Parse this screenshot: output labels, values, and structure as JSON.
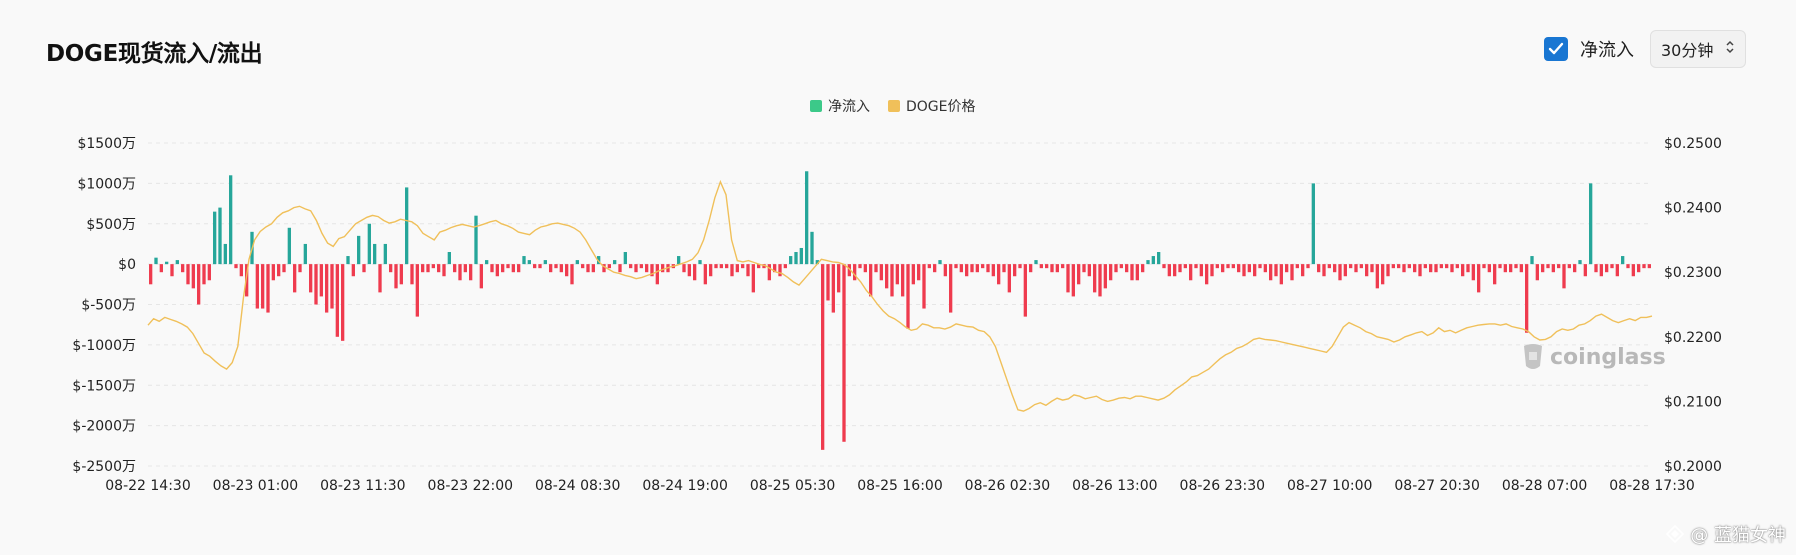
{
  "header": {
    "title": "DOGE现货流入/流出",
    "checkbox_label": "净流入",
    "interval": "30分钟"
  },
  "legend": [
    {
      "label": "净流入",
      "color": "#3cc989"
    },
    {
      "label": "DOGE价格",
      "color": "#f0c05a"
    }
  ],
  "watermark": "coinglass",
  "credit": "@ 蓝猫女神",
  "chart_data": {
    "type": "bar+line",
    "x_tick_labels": [
      "08-22 14:30",
      "08-23 01:00",
      "08-23 11:30",
      "08-23 22:00",
      "08-24 08:30",
      "08-24 19:00",
      "08-25 05:30",
      "08-25 16:00",
      "08-26 02:30",
      "08-26 13:00",
      "08-26 23:30",
      "08-27 10:00",
      "08-27 20:30",
      "08-28 07:00",
      "08-28 17:30"
    ],
    "y_left": {
      "ticks": [
        1500,
        1000,
        500,
        0,
        -500,
        -1000,
        -1500,
        -2000,
        -2500
      ],
      "labels": [
        "$1500万",
        "$1000万",
        "$500万",
        "$0",
        "$-500万",
        "$-1000万",
        "$-1500万",
        "$-2000万",
        "$-2500万"
      ],
      "range": [
        -2500,
        1500
      ],
      "unit": "万"
    },
    "y_right": {
      "ticks": [
        0.25,
        0.24,
        0.23,
        0.22,
        0.21,
        0.2
      ],
      "labels": [
        "$0.2500",
        "$0.2400",
        "$0.2300",
        "$0.2200",
        "$0.2100",
        "$0.2000"
      ],
      "range": [
        0.2,
        0.25
      ]
    },
    "colors": {
      "positive": "#26a69a",
      "negative": "#ef3b4e",
      "price": "#f0c05a"
    },
    "series": [
      {
        "name": "净流入",
        "values": [
          -250,
          80,
          -100,
          30,
          -150,
          50,
          -100,
          -250,
          -300,
          -500,
          -250,
          -200,
          650,
          700,
          250,
          1100,
          -50,
          -150,
          -400,
          400,
          -550,
          -550,
          -600,
          -200,
          -150,
          -100,
          450,
          -350,
          -100,
          250,
          -350,
          -500,
          -400,
          -600,
          -550,
          -900,
          -950,
          100,
          -150,
          350,
          -100,
          500,
          250,
          -350,
          250,
          -100,
          -300,
          -250,
          950,
          -250,
          -650,
          -100,
          -100,
          -50,
          -100,
          -150,
          150,
          -100,
          -200,
          -100,
          -200,
          600,
          -300,
          50,
          -100,
          -150,
          -100,
          -50,
          -100,
          -100,
          100,
          50,
          -50,
          -50,
          50,
          -100,
          -50,
          -100,
          -150,
          -250,
          50,
          -50,
          -100,
          -100,
          100,
          -100,
          -50,
          50,
          -100,
          150,
          -50,
          -100,
          -50,
          -100,
          -150,
          -250,
          -100,
          -100,
          -50,
          100,
          -100,
          -150,
          -200,
          50,
          -250,
          -150,
          -50,
          -50,
          -50,
          -150,
          -100,
          -50,
          -150,
          -350,
          -50,
          -50,
          -200,
          -100,
          -150,
          -50,
          100,
          150,
          200,
          1150,
          400,
          50,
          -2300,
          -450,
          -600,
          -350,
          -2200,
          -150,
          -200,
          -50,
          -100,
          -400,
          -100,
          -200,
          -300,
          -400,
          -250,
          -400,
          -800,
          -250,
          -200,
          -550,
          -50,
          -100,
          50,
          -150,
          -600,
          -50,
          -100,
          -150,
          -100,
          -100,
          -50,
          -100,
          -150,
          -250,
          -100,
          -350,
          -150,
          -50,
          -650,
          -100,
          50,
          -50,
          -50,
          -100,
          -100,
          -50,
          -350,
          -400,
          -250,
          -100,
          -150,
          -350,
          -400,
          -300,
          -200,
          -100,
          -50,
          -100,
          -200,
          -200,
          -100,
          50,
          100,
          150,
          -50,
          -150,
          -150,
          -100,
          -50,
          -200,
          -50,
          -150,
          -250,
          -150,
          -50,
          -100,
          -50,
          -50,
          -100,
          -150,
          -100,
          -150,
          -50,
          -100,
          -200,
          -150,
          -250,
          -100,
          -200,
          -50,
          -150,
          -50,
          1000,
          -100,
          -150,
          -50,
          -100,
          -200,
          -150,
          -50,
          -100,
          -50,
          -150,
          -100,
          -300,
          -250,
          -150,
          -50,
          -50,
          -100,
          -50,
          -100,
          -150,
          -50,
          -100,
          -100,
          -50,
          -50,
          -100,
          -50,
          -150,
          -100,
          -200,
          -350,
          -50,
          -100,
          -250,
          -50,
          -100,
          -100,
          -50,
          -100,
          -850,
          100,
          -200,
          -100,
          -50,
          -100,
          -50,
          -300,
          -50,
          -100,
          50,
          -150,
          1000,
          -100,
          -150,
          -100,
          -50,
          -150,
          100,
          -50,
          -150,
          -100,
          -50,
          -50
        ]
      },
      {
        "name": "DOGE价格",
        "values": [
          0.2218,
          0.2228,
          0.2224,
          0.223,
          0.2227,
          0.2224,
          0.222,
          0.2215,
          0.2205,
          0.219,
          0.2175,
          0.217,
          0.2162,
          0.2155,
          0.215,
          0.216,
          0.2185,
          0.226,
          0.232,
          0.235,
          0.2363,
          0.237,
          0.2375,
          0.2385,
          0.2392,
          0.2395,
          0.24,
          0.2402,
          0.2398,
          0.2395,
          0.238,
          0.236,
          0.2345,
          0.234,
          0.2352,
          0.2355,
          0.2365,
          0.2375,
          0.238,
          0.2385,
          0.2388,
          0.2386,
          0.238,
          0.2376,
          0.2378,
          0.2382,
          0.238,
          0.2378,
          0.2372,
          0.236,
          0.2355,
          0.235,
          0.2362,
          0.2365,
          0.2369,
          0.2372,
          0.2374,
          0.2372,
          0.237,
          0.2372,
          0.2375,
          0.2378,
          0.238,
          0.2375,
          0.2372,
          0.2368,
          0.2362,
          0.236,
          0.2358,
          0.2365,
          0.237,
          0.2372,
          0.2375,
          0.2376,
          0.2374,
          0.2372,
          0.2368,
          0.2362,
          0.235,
          0.2335,
          0.232,
          0.231,
          0.2305,
          0.23,
          0.2298,
          0.2295,
          0.2293,
          0.229,
          0.2292,
          0.2295,
          0.2298,
          0.2302,
          0.2305,
          0.2308,
          0.231,
          0.2313,
          0.2316,
          0.232,
          0.233,
          0.235,
          0.238,
          0.2415,
          0.244,
          0.242,
          0.235,
          0.2318,
          0.2316,
          0.2318,
          0.2315,
          0.2312,
          0.231,
          0.2305,
          0.23,
          0.2298,
          0.2292,
          0.2285,
          0.228,
          0.229,
          0.23,
          0.231,
          0.232,
          0.2318,
          0.2316,
          0.2315,
          0.2312,
          0.2305,
          0.2295,
          0.2285,
          0.2272,
          0.2262,
          0.225,
          0.224,
          0.2232,
          0.2228,
          0.2222,
          0.2215,
          0.221,
          0.2212,
          0.222,
          0.2218,
          0.2214,
          0.2214,
          0.2212,
          0.2215,
          0.222,
          0.2218,
          0.2216,
          0.2215,
          0.221,
          0.2208,
          0.22,
          0.2185,
          0.216,
          0.2135,
          0.211,
          0.2087,
          0.2085,
          0.2089,
          0.2095,
          0.2098,
          0.2094,
          0.21,
          0.2105,
          0.2102,
          0.2104,
          0.211,
          0.2108,
          0.2104,
          0.2106,
          0.2108,
          0.2103,
          0.21,
          0.2102,
          0.2105,
          0.2106,
          0.2104,
          0.2108,
          0.2108,
          0.2106,
          0.2104,
          0.2102,
          0.2105,
          0.211,
          0.2118,
          0.2124,
          0.213,
          0.2138,
          0.214,
          0.2145,
          0.215,
          0.2158,
          0.2166,
          0.2172,
          0.2176,
          0.2182,
          0.2185,
          0.219,
          0.2196,
          0.2198,
          0.2196,
          0.2195,
          0.2194,
          0.2192,
          0.219,
          0.2188,
          0.2186,
          0.2184,
          0.2182,
          0.218,
          0.2178,
          0.2176,
          0.2185,
          0.22,
          0.2215,
          0.2222,
          0.2218,
          0.2214,
          0.2208,
          0.2205,
          0.22,
          0.2198,
          0.2196,
          0.2192,
          0.2195,
          0.22,
          0.2203,
          0.2206,
          0.2208,
          0.2202,
          0.2206,
          0.2214,
          0.2208,
          0.221,
          0.2206,
          0.221,
          0.2214,
          0.2216,
          0.2218,
          0.2219,
          0.222,
          0.222,
          0.2218,
          0.222,
          0.2216,
          0.2214,
          0.2212,
          0.2208,
          0.22,
          0.2195,
          0.2196,
          0.22,
          0.2208,
          0.2212,
          0.221,
          0.2212,
          0.2218,
          0.222,
          0.2225,
          0.2232,
          0.2235,
          0.223,
          0.2225,
          0.2222,
          0.2225,
          0.2228,
          0.2225,
          0.223,
          0.223,
          0.2232
        ]
      }
    ]
  }
}
